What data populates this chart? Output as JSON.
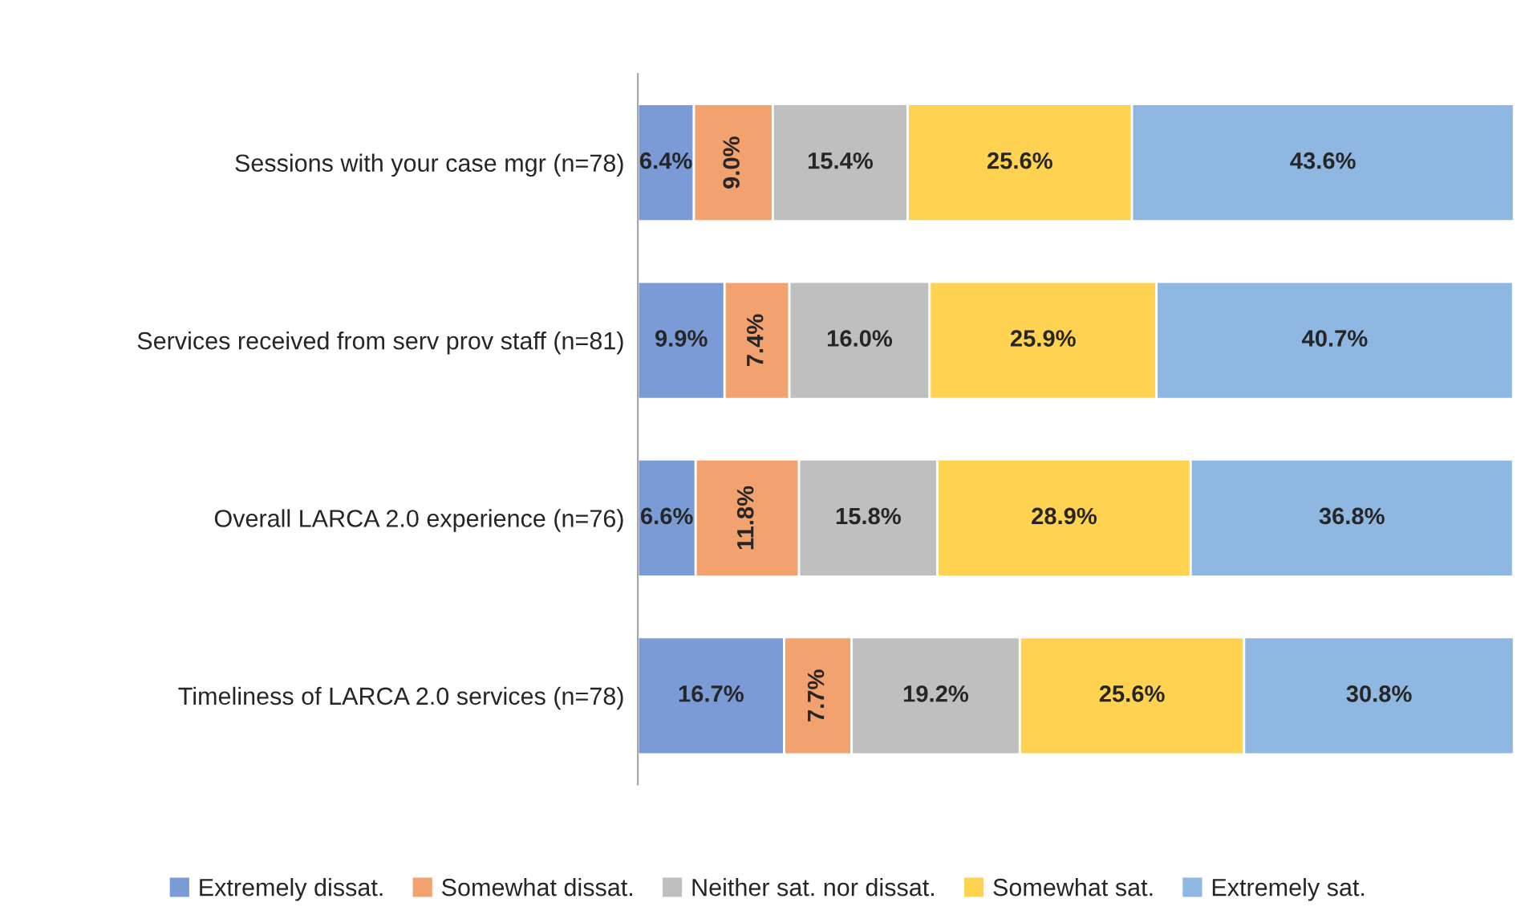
{
  "chart_data": {
    "type": "bar",
    "orientation": "horizontal",
    "stacked": true,
    "legend": "bottom",
    "grid": false,
    "categories": [
      "Sessions with your case mgr (n=78)",
      "Services received from serv prov staff (n=81)",
      "Overall LARCA 2.0 experience (n=76)",
      "Timeliness of LARCA 2.0 services (n=78)"
    ],
    "series": [
      {
        "name": "Extremely dissat.",
        "color": "#7b9bd6",
        "values": [
          6.4,
          9.9,
          6.6,
          16.7
        ],
        "value_labels": [
          "6.4%",
          "9.9%",
          "6.6%",
          "16.7%"
        ]
      },
      {
        "name": "Somewhat dissat.",
        "color": "#f2a26e",
        "values": [
          9.0,
          7.4,
          11.8,
          7.7
        ],
        "value_labels": [
          "9.0%",
          "7.4%",
          "11.8%",
          "7.7%"
        ]
      },
      {
        "name": "Neither sat. nor dissat.",
        "color": "#bfbfbf",
        "values": [
          15.4,
          16.0,
          15.8,
          19.2
        ],
        "value_labels": [
          "15.4%",
          "16.0%",
          "15.8%",
          "19.2%"
        ]
      },
      {
        "name": "Somewhat sat.",
        "color": "#ffd351",
        "values": [
          25.6,
          25.9,
          28.9,
          25.6
        ],
        "value_labels": [
          "25.6%",
          "25.9%",
          "28.9%",
          "25.6%"
        ]
      },
      {
        "name": "Extremely sat.",
        "color": "#8eb8e2",
        "values": [
          43.6,
          40.7,
          36.8,
          30.8
        ],
        "value_labels": [
          "43.6%",
          "40.7%",
          "36.8%",
          "30.8%"
        ]
      }
    ]
  }
}
